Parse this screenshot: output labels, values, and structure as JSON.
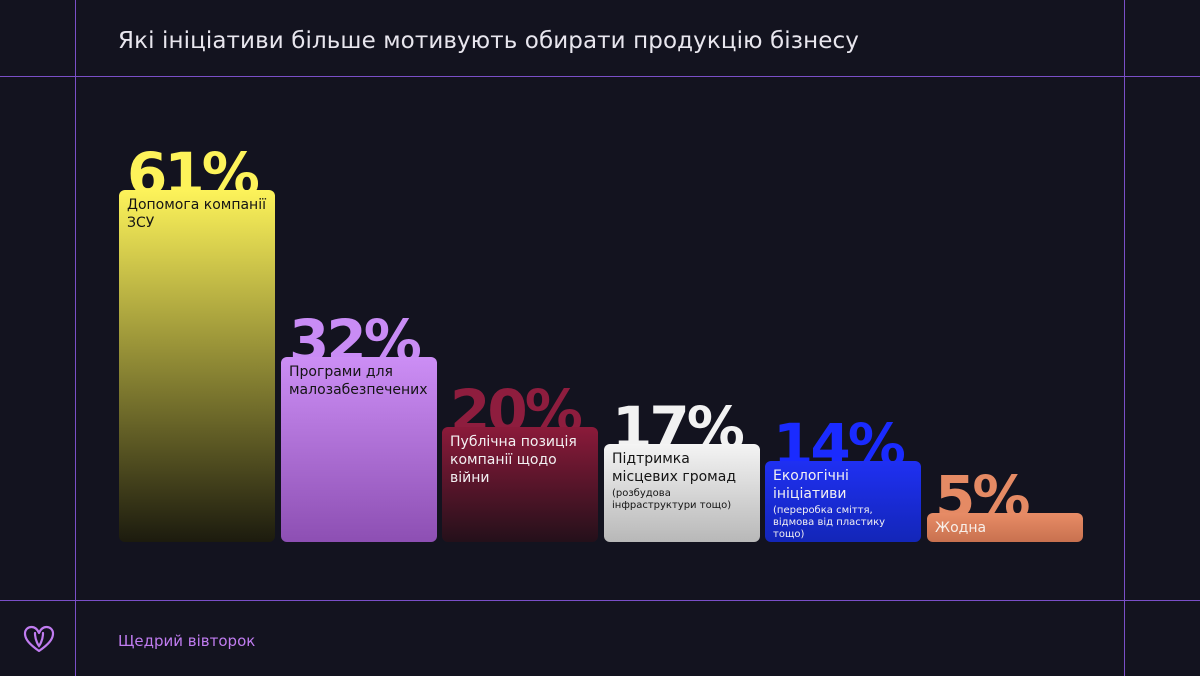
{
  "title": "Які ініціативи більше мотивують обирати продукцію бізнесу",
  "brand": "Щедрий вівторок",
  "colors": {
    "line": "#7a4fc7",
    "background": "#13131f"
  },
  "chart_data": {
    "type": "bar",
    "ylim": [
      0,
      61
    ],
    "grid": false,
    "bars": [
      {
        "value": 61,
        "pct_label": "61%",
        "label": "Допомога компанії ЗСУ",
        "sub": "",
        "pct_color": "#fdf35a",
        "bar_top": "#fdf35a",
        "bar_bottom": "#1c1b0e",
        "label_color": "#141414"
      },
      {
        "value": 32,
        "pct_label": "32%",
        "label": "Програми для малозабезпечених",
        "sub": "",
        "pct_color": "#c98cf5",
        "bar_top": "#cc8ef5",
        "bar_bottom": "#8d4fb3",
        "label_color": "#141414"
      },
      {
        "value": 20,
        "pct_label": "20%",
        "label": "Публічна позиція компанії щодо війни",
        "sub": "",
        "pct_color": "#8e1d3e",
        "bar_top": "#8b1a3a",
        "bar_bottom": "#24101a",
        "label_color": "#f2f0f2"
      },
      {
        "value": 17,
        "pct_label": "17%",
        "label": "Підтримка місцевих громад",
        "sub": "(розбудова інфраструктури тощо)",
        "pct_color": "#f2f2f2",
        "bar_top": "#f4f4f4",
        "bar_bottom": "#b8b8b8",
        "label_color": "#141414"
      },
      {
        "value": 14,
        "pct_label": "14%",
        "label": "Екологічні ініціативи",
        "sub": "(переробка сміття, відмова від пластику тощо)",
        "pct_color": "#1a2bff",
        "bar_top": "#1f30f2",
        "bar_bottom": "#1326b8",
        "label_color": "#f2f0f2"
      },
      {
        "value": 5,
        "pct_label": "5%",
        "label": "Жодна",
        "sub": "",
        "pct_color": "#e58a64",
        "bar_top": "#e88c66",
        "bar_bottom": "#c8714f",
        "label_color": "#f7efe9"
      }
    ]
  }
}
